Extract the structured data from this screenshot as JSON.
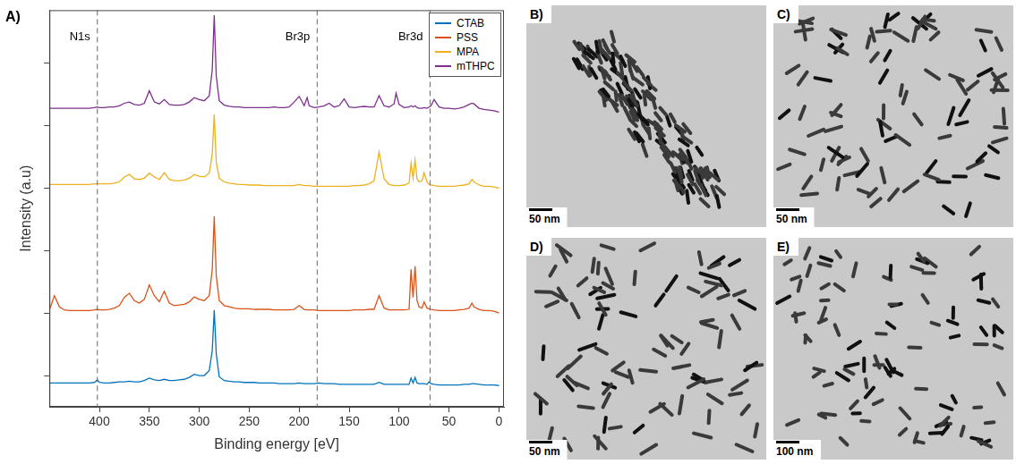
{
  "chart_data": {
    "type": "line",
    "panel_label": "A)",
    "x_label": "Binding energy [eV]",
    "y_label": "Intensity (a.u)",
    "xlim": [
      450,
      -5
    ],
    "xticks": [
      400,
      350,
      300,
      250,
      200,
      150,
      100,
      50,
      0
    ],
    "ylim": [
      0,
      6.35
    ],
    "yticks": [
      0.5,
      1.5,
      2.5,
      3.5,
      4.5,
      5.5
    ],
    "tick_labels": "x",
    "grid": false,
    "legend": "upper right",
    "annotations": [
      {
        "text": "N1s",
        "x": 402
      },
      {
        "text": "Br3p",
        "x": 182
      },
      {
        "text": "Br3d",
        "x": 69
      }
    ],
    "x": [
      450,
      445,
      440,
      435,
      430,
      425,
      420,
      415,
      410,
      405,
      402,
      400,
      395,
      390,
      385,
      380,
      375,
      370,
      365,
      360,
      355,
      350,
      345,
      340,
      335,
      330,
      325,
      320,
      315,
      310,
      305,
      300,
      295,
      290,
      287,
      285,
      283,
      280,
      275,
      270,
      265,
      260,
      255,
      250,
      245,
      240,
      235,
      230,
      225,
      220,
      215,
      210,
      205,
      200,
      195,
      192,
      190,
      185,
      180,
      175,
      170,
      165,
      160,
      155,
      150,
      145,
      140,
      135,
      130,
      125,
      120,
      115,
      110,
      105,
      103,
      100,
      95,
      90,
      88,
      86,
      84,
      82,
      80,
      77,
      75,
      72,
      70,
      68,
      65,
      60,
      55,
      50,
      45,
      40,
      35,
      30,
      27,
      25,
      20,
      15,
      10,
      5,
      0
    ],
    "series": [
      {
        "name": "CTAB",
        "color": "#0072BD",
        "values": [
          0.38,
          0.38,
          0.38,
          0.38,
          0.38,
          0.38,
          0.38,
          0.38,
          0.38,
          0.39,
          0.43,
          0.39,
          0.38,
          0.38,
          0.39,
          0.4,
          0.4,
          0.41,
          0.4,
          0.4,
          0.42,
          0.46,
          0.43,
          0.42,
          0.44,
          0.42,
          0.42,
          0.43,
          0.44,
          0.47,
          0.52,
          0.5,
          0.5,
          0.58,
          0.9,
          1.55,
          0.85,
          0.48,
          0.42,
          0.41,
          0.4,
          0.4,
          0.39,
          0.39,
          0.39,
          0.38,
          0.38,
          0.38,
          0.38,
          0.37,
          0.37,
          0.37,
          0.37,
          0.38,
          0.37,
          0.37,
          0.37,
          0.37,
          0.38,
          0.37,
          0.37,
          0.37,
          0.36,
          0.36,
          0.36,
          0.36,
          0.36,
          0.36,
          0.36,
          0.36,
          0.39,
          0.36,
          0.36,
          0.36,
          0.36,
          0.36,
          0.36,
          0.36,
          0.46,
          0.38,
          0.47,
          0.38,
          0.37,
          0.37,
          0.37,
          0.36,
          0.4,
          0.37,
          0.36,
          0.35,
          0.35,
          0.35,
          0.35,
          0.35,
          0.36,
          0.36,
          0.37,
          0.37,
          0.36,
          0.35,
          0.35,
          0.35,
          0.34
        ]
      },
      {
        "name": "PSS",
        "color": "#D95319",
        "values": [
          1.55,
          1.78,
          1.6,
          1.55,
          1.54,
          1.54,
          1.54,
          1.54,
          1.54,
          1.55,
          1.56,
          1.55,
          1.55,
          1.56,
          1.58,
          1.62,
          1.75,
          1.82,
          1.7,
          1.66,
          1.72,
          1.95,
          1.78,
          1.68,
          1.85,
          1.66,
          1.62,
          1.63,
          1.64,
          1.68,
          1.76,
          1.72,
          1.7,
          1.78,
          2.2,
          3.05,
          2.1,
          1.7,
          1.62,
          1.6,
          1.58,
          1.57,
          1.57,
          1.57,
          1.56,
          1.56,
          1.56,
          1.56,
          1.55,
          1.55,
          1.55,
          1.55,
          1.56,
          1.62,
          1.56,
          1.55,
          1.55,
          1.55,
          1.54,
          1.54,
          1.54,
          1.54,
          1.54,
          1.54,
          1.54,
          1.55,
          1.55,
          1.55,
          1.56,
          1.56,
          1.78,
          1.58,
          1.55,
          1.55,
          1.55,
          1.55,
          1.55,
          1.56,
          2.2,
          1.75,
          2.25,
          1.7,
          1.6,
          1.58,
          1.68,
          1.58,
          1.57,
          1.56,
          1.55,
          1.54,
          1.54,
          1.54,
          1.54,
          1.55,
          1.56,
          1.58,
          1.66,
          1.6,
          1.56,
          1.54,
          1.54,
          1.53,
          1.5
        ]
      },
      {
        "name": "MPA",
        "color": "#EDB120",
        "values": [
          3.56,
          3.56,
          3.56,
          3.56,
          3.56,
          3.56,
          3.56,
          3.56,
          3.56,
          3.57,
          3.57,
          3.57,
          3.57,
          3.57,
          3.58,
          3.6,
          3.68,
          3.72,
          3.65,
          3.64,
          3.66,
          3.74,
          3.68,
          3.64,
          3.75,
          3.64,
          3.62,
          3.62,
          3.63,
          3.66,
          3.72,
          3.69,
          3.68,
          3.74,
          4.05,
          4.68,
          3.92,
          3.66,
          3.6,
          3.58,
          3.57,
          3.56,
          3.56,
          3.55,
          3.55,
          3.55,
          3.54,
          3.54,
          3.54,
          3.54,
          3.54,
          3.54,
          3.54,
          3.56,
          3.54,
          3.54,
          3.54,
          3.53,
          3.53,
          3.53,
          3.53,
          3.53,
          3.53,
          3.53,
          3.53,
          3.54,
          3.54,
          3.55,
          3.57,
          3.62,
          4.08,
          3.65,
          3.56,
          3.54,
          3.54,
          3.54,
          3.55,
          3.58,
          3.9,
          3.66,
          3.95,
          3.65,
          3.6,
          3.62,
          3.75,
          3.6,
          3.56,
          3.55,
          3.54,
          3.53,
          3.53,
          3.53,
          3.53,
          3.54,
          3.55,
          3.57,
          3.64,
          3.6,
          3.55,
          3.53,
          3.53,
          3.52,
          3.5
        ]
      },
      {
        "name": "mTHPC",
        "color": "#7E2F8E",
        "values": [
          4.78,
          4.78,
          4.78,
          4.78,
          4.78,
          4.78,
          4.78,
          4.78,
          4.78,
          4.79,
          4.8,
          4.79,
          4.79,
          4.8,
          4.8,
          4.82,
          4.86,
          4.88,
          4.84,
          4.83,
          4.86,
          5.06,
          4.88,
          4.85,
          4.92,
          4.84,
          4.83,
          4.83,
          4.84,
          4.88,
          4.95,
          4.92,
          4.9,
          4.98,
          5.4,
          6.27,
          5.3,
          4.9,
          4.83,
          4.81,
          4.8,
          4.8,
          4.79,
          4.79,
          4.79,
          4.79,
          4.79,
          4.79,
          4.8,
          4.79,
          4.79,
          4.8,
          4.88,
          4.97,
          4.82,
          4.95,
          4.82,
          4.79,
          4.8,
          4.82,
          4.86,
          4.8,
          4.82,
          4.93,
          4.8,
          4.79,
          4.8,
          4.81,
          4.8,
          4.8,
          4.98,
          4.82,
          4.8,
          4.85,
          5.02,
          4.84,
          4.79,
          4.8,
          4.82,
          4.8,
          4.82,
          4.79,
          4.78,
          4.78,
          4.79,
          4.78,
          4.8,
          4.82,
          4.92,
          4.8,
          4.78,
          4.78,
          4.77,
          4.78,
          4.8,
          4.84,
          4.86,
          4.85,
          4.78,
          4.76,
          4.75,
          4.74,
          4.72
        ]
      }
    ]
  },
  "images": [
    {
      "label": "B)",
      "scale_bar": "50 nm"
    },
    {
      "label": "C)",
      "scale_bar": "50 nm"
    },
    {
      "label": "D)",
      "scale_bar": "50 nm"
    },
    {
      "label": "E)",
      "scale_bar": "100 nm"
    }
  ]
}
